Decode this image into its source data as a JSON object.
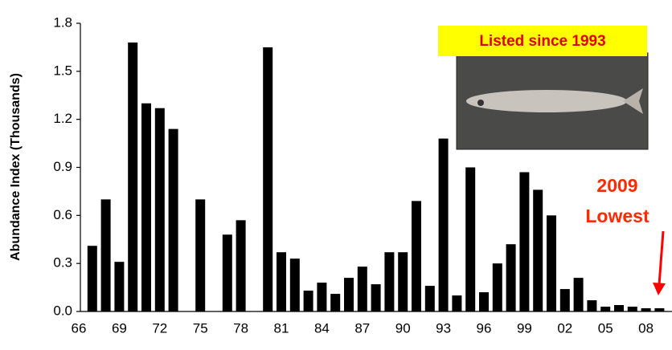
{
  "chart_data": {
    "type": "bar",
    "y_label": "Abundance Index   (Thousands)",
    "categories": [
      "66",
      null,
      null,
      "69",
      null,
      null,
      "72",
      null,
      null,
      "75",
      null,
      null,
      "78",
      null,
      null,
      "81",
      null,
      null,
      "84",
      null,
      null,
      "87",
      null,
      null,
      "90",
      null,
      null,
      "93",
      null,
      null,
      "96",
      null,
      null,
      "99",
      null,
      null,
      "02",
      null,
      null,
      "05",
      null,
      null,
      "08",
      null
    ],
    "values": [
      null,
      0.41,
      0.7,
      0.31,
      1.68,
      1.3,
      1.27,
      1.14,
      null,
      0.7,
      null,
      0.48,
      0.57,
      null,
      1.65,
      0.37,
      0.33,
      0.13,
      0.18,
      0.11,
      0.21,
      0.28,
      0.17,
      0.37,
      0.37,
      0.69,
      0.16,
      1.08,
      0.1,
      0.9,
      0.12,
      0.3,
      0.42,
      0.87,
      0.76,
      0.6,
      0.14,
      0.21,
      0.07,
      0.03,
      0.04,
      0.03,
      0.02,
      0.02
    ],
    "color": "#000000",
    "ylim": [
      0,
      1.8
    ],
    "yticks": [
      {
        "value": 0,
        "label": "0.0"
      },
      0.3,
      0.6,
      0.9,
      1.2,
      1.5,
      1.8
    ],
    "annotations": [
      "Listed since 1993",
      "2009",
      "Lowest"
    ]
  }
}
